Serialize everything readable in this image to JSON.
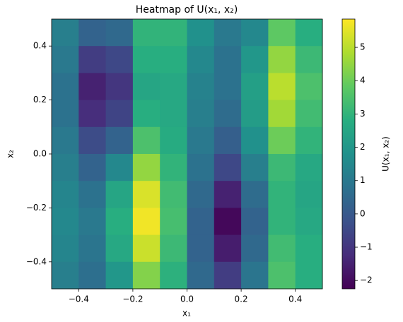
{
  "chart_data": {
    "type": "heatmap",
    "title": "Heatmap of U(x₁, x₂)",
    "x_label": "x₁",
    "y_label": "x₂",
    "colorbar_label": "U(x₁, x₂)",
    "colormap": "viridis",
    "x": [
      -0.45,
      -0.35,
      -0.25,
      -0.15,
      -0.05,
      0.05,
      0.15,
      0.25,
      0.35,
      0.45
    ],
    "y": [
      0.45,
      0.35,
      0.25,
      0.15,
      0.05,
      -0.05,
      -0.15,
      -0.25,
      -0.35,
      -0.45
    ],
    "z": [
      [
        1.2,
        0.3,
        0.5,
        3.0,
        3.0,
        1.8,
        1.0,
        1.5,
        3.8,
        2.8
      ],
      [
        1.0,
        -0.8,
        -0.5,
        2.8,
        2.8,
        1.5,
        0.8,
        2.0,
        4.5,
        3.2
      ],
      [
        0.8,
        -1.5,
        -1.0,
        2.5,
        2.6,
        1.3,
        0.8,
        2.3,
        5.0,
        3.5
      ],
      [
        0.8,
        -1.2,
        -0.6,
        2.8,
        2.6,
        1.2,
        0.6,
        2.2,
        4.7,
        3.3
      ],
      [
        1.0,
        -0.4,
        0.3,
        3.5,
        2.7,
        1.0,
        0.2,
        1.8,
        4.0,
        3.0
      ],
      [
        1.2,
        0.3,
        1.5,
        4.5,
        3.0,
        0.8,
        -0.5,
        1.2,
        3.2,
        2.6
      ],
      [
        1.4,
        0.8,
        2.5,
        5.4,
        3.3,
        0.5,
        -1.5,
        0.6,
        3.0,
        2.5
      ],
      [
        1.5,
        1.0,
        2.8,
        5.7,
        3.4,
        0.3,
        -2.1,
        0.3,
        3.0,
        2.6
      ],
      [
        1.4,
        0.9,
        2.6,
        5.2,
        3.2,
        0.3,
        -1.6,
        0.5,
        3.3,
        2.8
      ],
      [
        1.2,
        0.7,
        2.0,
        4.3,
        2.9,
        0.5,
        -0.8,
        0.9,
        3.5,
        2.8
      ]
    ],
    "xlim": [
      -0.5,
      0.5
    ],
    "ylim": [
      -0.5,
      0.5
    ],
    "xticks": [
      {
        "value": -0.4,
        "label": "−0.4"
      },
      {
        "value": -0.2,
        "label": "−0.2"
      },
      {
        "value": 0.0,
        "label": "0.0"
      },
      0.2,
      0.4
    ],
    "yticks": [
      {
        "value": -0.4,
        "label": "−0.4"
      },
      {
        "value": -0.2,
        "label": "−0.2"
      },
      {
        "value": 0.0,
        "label": "0.0"
      },
      0.2,
      0.4
    ],
    "clim": [
      -2.25,
      5.85
    ],
    "cticks": [
      {
        "value": -2,
        "label": "−2"
      },
      {
        "value": -1,
        "label": "−1"
      },
      0,
      1,
      2,
      3,
      4,
      5
    ]
  }
}
